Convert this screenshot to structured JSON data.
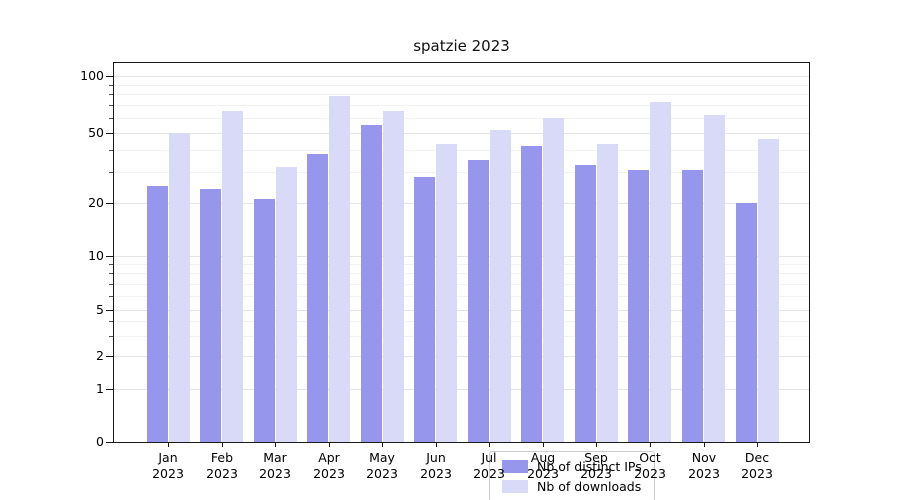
{
  "chart_data": {
    "type": "bar",
    "title": "spatzie 2023",
    "yscale": "symlog",
    "grid": true,
    "legend_position": "lower center",
    "y_ticks": [
      0,
      1,
      2,
      5,
      10,
      20,
      50,
      100
    ],
    "y_minor_gridlines": [
      3,
      4,
      6,
      7,
      8,
      9,
      30,
      40,
      60,
      70,
      80,
      90
    ],
    "x_tick_labels": [
      {
        "month": "Jan",
        "year": "2023"
      },
      {
        "month": "Feb",
        "year": "2023"
      },
      {
        "month": "Mar",
        "year": "2023"
      },
      {
        "month": "Apr",
        "year": "2023"
      },
      {
        "month": "May",
        "year": "2023"
      },
      {
        "month": "Jun",
        "year": "2023"
      },
      {
        "month": "Jul",
        "year": "2023"
      },
      {
        "month": "Aug",
        "year": "2023"
      },
      {
        "month": "Sep",
        "year": "2023"
      },
      {
        "month": "Oct",
        "year": "2023"
      },
      {
        "month": "Nov",
        "year": "2023"
      },
      {
        "month": "Dec",
        "year": "2023"
      }
    ],
    "series": [
      {
        "name": "Nb of distinct IPs",
        "color": "#9696ec",
        "values": [
          25,
          24,
          21,
          38,
          55,
          28,
          35,
          42,
          33,
          31,
          31,
          20
        ]
      },
      {
        "name": "Nb of downloads",
        "color": "#d9d9f8",
        "values": [
          50,
          65,
          32,
          78,
          65,
          43,
          52,
          60,
          43,
          73,
          62,
          46
        ]
      }
    ]
  }
}
